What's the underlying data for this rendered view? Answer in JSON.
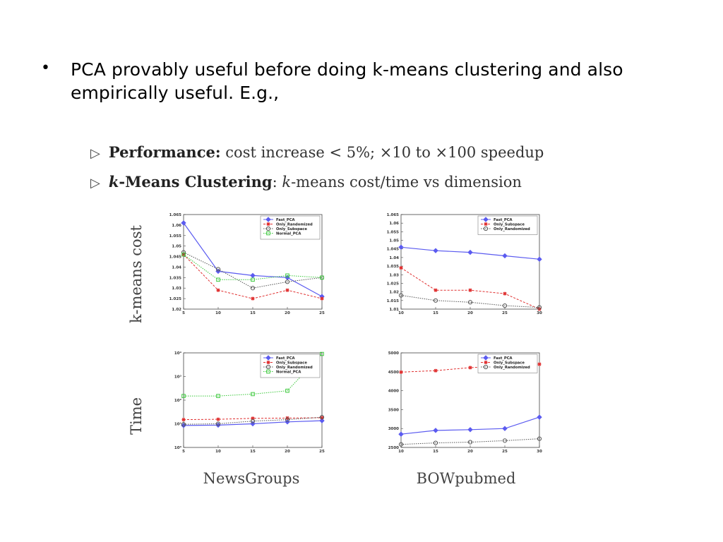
{
  "slide": {
    "bullet_symbol": "•",
    "bullet_text": "PCA provably useful before doing k-means clustering and also empirically useful. E.g.,",
    "sub_items": [
      {
        "marker": "▷",
        "bold": "Performance:",
        "rest": " cost increase < 5%; ×10 to ×100 speedup"
      },
      {
        "marker": "▷",
        "bold_italic_k": "k",
        "bold": "-Means Clustering",
        "rest_k": ": ",
        "italic": "k",
        "rest": "-means cost/time vs dimension"
      }
    ],
    "row_labels": {
      "cost": "k-means cost",
      "time": "Time"
    },
    "dataset_labels": {
      "left": "NewsGroups",
      "right": "BOWpubmed"
    }
  },
  "chart_data": [
    {
      "type": "line",
      "dataset": "NewsGroups",
      "metric": "k-means cost",
      "x": [
        5,
        10,
        15,
        20,
        25
      ],
      "xticks": [
        "5",
        "10",
        "15",
        "20",
        "25"
      ],
      "ylim": [
        1.02,
        1.065
      ],
      "yticks": [
        "1.02",
        "1.025",
        "1.03",
        "1.035",
        "1.04",
        "1.045",
        "1.05",
        "1.055",
        "1.06",
        "1.065"
      ],
      "yscale": "linear",
      "legend": "top-right",
      "series": [
        {
          "name": "Fast_PCA",
          "color": "#5b5bf0",
          "style": "solid",
          "marker": "diamond",
          "values": [
            1.061,
            1.038,
            1.036,
            1.035,
            1.026
          ]
        },
        {
          "name": "Only_Randomized",
          "color": "#e03030",
          "style": "dash",
          "marker": "star",
          "values": [
            1.046,
            1.029,
            1.025,
            1.029,
            1.025
          ]
        },
        {
          "name": "Only_Subspace",
          "color": "#555555",
          "style": "dot",
          "marker": "circle",
          "values": [
            1.047,
            1.039,
            1.03,
            1.033,
            1.035
          ]
        },
        {
          "name": "Normal_PCA",
          "color": "#3ec93e",
          "style": "dot",
          "marker": "square",
          "values": [
            1.046,
            1.034,
            1.034,
            1.036,
            1.035
          ]
        }
      ]
    },
    {
      "type": "line",
      "dataset": "BOWpubmed",
      "metric": "k-means cost",
      "x": [
        10,
        15,
        20,
        25,
        30
      ],
      "xticks": [
        "10",
        "15",
        "20",
        "25",
        "30"
      ],
      "ylim": [
        1.01,
        1.065
      ],
      "yticks": [
        "1.01",
        "1.015",
        "1.02",
        "1.025",
        "1.03",
        "1.035",
        "1.04",
        "1.045",
        "1.05",
        "1.055",
        "1.06",
        "1.065"
      ],
      "yscale": "linear",
      "legend": "top-right",
      "series": [
        {
          "name": "Fast_PCA",
          "color": "#5b5bf0",
          "style": "solid",
          "marker": "diamond",
          "values": [
            1.046,
            1.044,
            1.043,
            1.041,
            1.039
          ]
        },
        {
          "name": "Only_Subspace",
          "color": "#e03030",
          "style": "dash",
          "marker": "star",
          "values": [
            1.034,
            1.021,
            1.021,
            1.019,
            1.01
          ]
        },
        {
          "name": "Only_Randomized",
          "color": "#555555",
          "style": "dot",
          "marker": "circle",
          "values": [
            1.018,
            1.015,
            1.014,
            1.012,
            1.011
          ]
        }
      ]
    },
    {
      "type": "line",
      "dataset": "NewsGroups",
      "metric": "Time",
      "x": [
        5,
        10,
        15,
        20,
        25
      ],
      "xticks": [
        "5",
        "10",
        "15",
        "20",
        "25"
      ],
      "ylim": [
        1,
        10000
      ],
      "yticks": [
        "10⁰",
        "10¹",
        "10²",
        "10³",
        "10⁴"
      ],
      "yscale": "log",
      "legend": "top-right",
      "series": [
        {
          "name": "Fast_PCA",
          "color": "#5b5bf0",
          "style": "solid",
          "marker": "diamond",
          "values": [
            8.5,
            8.8,
            10,
            12,
            13.5
          ]
        },
        {
          "name": "Only_Subspace",
          "color": "#e03030",
          "style": "dash",
          "marker": "star",
          "values": [
            15,
            15.5,
            17,
            17.5,
            18
          ]
        },
        {
          "name": "Only_Randomized",
          "color": "#555555",
          "style": "dot",
          "marker": "circle",
          "values": [
            9.5,
            10,
            13,
            15,
            19
          ]
        },
        {
          "name": "Normal_PCA",
          "color": "#3ec93e",
          "style": "dot",
          "marker": "square",
          "values": [
            150,
            150,
            180,
            250,
            9000
          ]
        }
      ]
    },
    {
      "type": "line",
      "dataset": "BOWpubmed",
      "metric": "Time",
      "x": [
        10,
        15,
        20,
        25,
        30
      ],
      "xticks": [
        "10",
        "15",
        "20",
        "25",
        "30"
      ],
      "ylim": [
        2500,
        5000
      ],
      "yticks": [
        "2500",
        "3000",
        "3500",
        "4000",
        "4500",
        "5000"
      ],
      "yscale": "linear",
      "legend": "top-right",
      "series": [
        {
          "name": "Fast_PCA",
          "color": "#5b5bf0",
          "style": "solid",
          "marker": "diamond",
          "values": [
            2850,
            2950,
            2970,
            3000,
            3300
          ]
        },
        {
          "name": "Only_Subspace",
          "color": "#e03030",
          "style": "dash",
          "marker": "star",
          "values": [
            4490,
            4530,
            4610,
            4650,
            4700
          ]
        },
        {
          "name": "Only_Randomized",
          "color": "#555555",
          "style": "dot",
          "marker": "circle",
          "values": [
            2580,
            2620,
            2640,
            2680,
            2730
          ]
        }
      ]
    }
  ]
}
